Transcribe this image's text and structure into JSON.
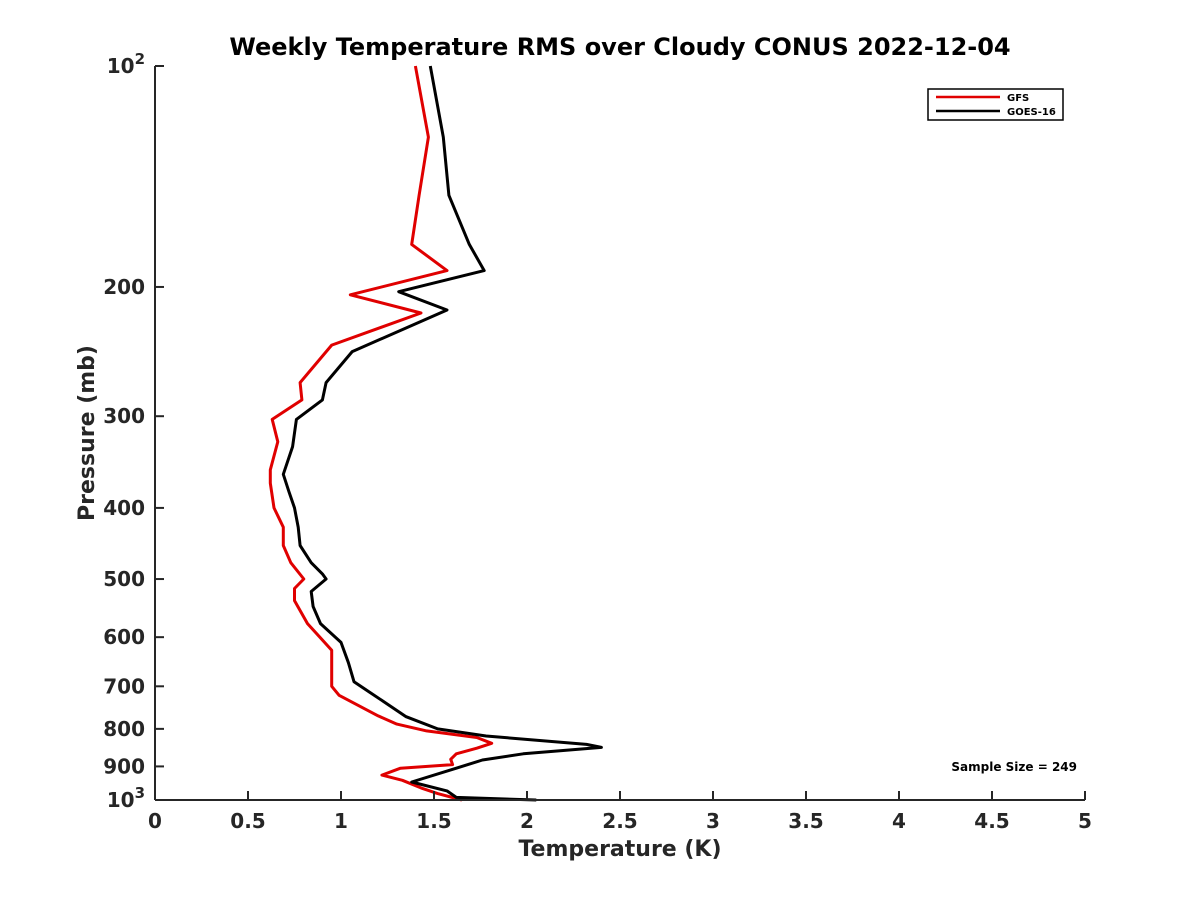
{
  "chart_data": {
    "type": "line",
    "title": "Weekly Temperature RMS over Cloudy CONUS 2022-12-04",
    "xlabel": "Temperature (K)",
    "ylabel": "Pressure (mb)",
    "xlim": [
      0,
      5
    ],
    "ylim": [
      100,
      1000
    ],
    "y_scale": "log",
    "y_reversed": true,
    "grid": false,
    "legend_position": "top-right",
    "x_ticks": [
      {
        "value": 0,
        "label": "0"
      },
      {
        "value": 0.5,
        "label": "0.5"
      },
      {
        "value": 1,
        "label": "1"
      },
      {
        "value": 1.5,
        "label": "1.5"
      },
      {
        "value": 2,
        "label": "2"
      },
      {
        "value": 2.5,
        "label": "2.5"
      },
      {
        "value": 3,
        "label": "3"
      },
      {
        "value": 3.5,
        "label": "3.5"
      },
      {
        "value": 4,
        "label": "4"
      },
      {
        "value": 4.5,
        "label": "4.5"
      },
      {
        "value": 5,
        "label": "5"
      }
    ],
    "y_ticks": [
      {
        "value": 100,
        "label": "10",
        "sup": "2"
      },
      {
        "value": 200,
        "label": "200"
      },
      {
        "value": 300,
        "label": "300"
      },
      {
        "value": 400,
        "label": "400"
      },
      {
        "value": 500,
        "label": "500"
      },
      {
        "value": 600,
        "label": "600"
      },
      {
        "value": 700,
        "label": "700"
      },
      {
        "value": 800,
        "label": "800"
      },
      {
        "value": 900,
        "label": "900"
      },
      {
        "value": 1000,
        "label": "10",
        "sup": "3"
      }
    ],
    "series": [
      {
        "name": "GFS",
        "color": "#e00000",
        "points": [
          [
            1.4,
            100
          ],
          [
            1.47,
            125
          ],
          [
            1.42,
            150
          ],
          [
            1.38,
            175
          ],
          [
            1.57,
            190
          ],
          [
            1.05,
            205
          ],
          [
            1.43,
            217
          ],
          [
            0.95,
            240
          ],
          [
            0.78,
            270
          ],
          [
            0.79,
            285
          ],
          [
            0.63,
            303
          ],
          [
            0.66,
            325
          ],
          [
            0.62,
            355
          ],
          [
            0.62,
            370
          ],
          [
            0.64,
            400
          ],
          [
            0.69,
            425
          ],
          [
            0.69,
            450
          ],
          [
            0.73,
            475
          ],
          [
            0.8,
            500
          ],
          [
            0.75,
            515
          ],
          [
            0.75,
            535
          ],
          [
            0.82,
            575
          ],
          [
            0.95,
            625
          ],
          [
            0.95,
            675
          ],
          [
            0.95,
            700
          ],
          [
            0.99,
            720
          ],
          [
            1.2,
            768
          ],
          [
            1.3,
            788
          ],
          [
            1.46,
            805
          ],
          [
            1.73,
            822
          ],
          [
            1.81,
            837
          ],
          [
            1.73,
            850
          ],
          [
            1.62,
            865
          ],
          [
            1.59,
            880
          ],
          [
            1.6,
            895
          ],
          [
            1.32,
            905
          ],
          [
            1.22,
            925
          ],
          [
            1.33,
            940
          ],
          [
            1.44,
            965
          ],
          [
            1.52,
            980
          ],
          [
            1.65,
            1000
          ]
        ]
      },
      {
        "name": "GOES-16",
        "color": "#000000",
        "points": [
          [
            1.48,
            100
          ],
          [
            1.55,
            125
          ],
          [
            1.58,
            150
          ],
          [
            1.69,
            175
          ],
          [
            1.77,
            190
          ],
          [
            1.31,
            203
          ],
          [
            1.57,
            215
          ],
          [
            1.06,
            245
          ],
          [
            0.92,
            270
          ],
          [
            0.9,
            285
          ],
          [
            0.76,
            303
          ],
          [
            0.74,
            330
          ],
          [
            0.69,
            360
          ],
          [
            0.72,
            380
          ],
          [
            0.75,
            400
          ],
          [
            0.77,
            425
          ],
          [
            0.78,
            450
          ],
          [
            0.84,
            475
          ],
          [
            0.9,
            492
          ],
          [
            0.92,
            500
          ],
          [
            0.84,
            520
          ],
          [
            0.85,
            545
          ],
          [
            0.89,
            575
          ],
          [
            1.0,
            610
          ],
          [
            1.04,
            650
          ],
          [
            1.07,
            690
          ],
          [
            1.15,
            712
          ],
          [
            1.35,
            770
          ],
          [
            1.52,
            800
          ],
          [
            1.78,
            818
          ],
          [
            2.32,
            840
          ],
          [
            2.4,
            848
          ],
          [
            1.98,
            865
          ],
          [
            1.76,
            882
          ],
          [
            1.62,
            905
          ],
          [
            1.38,
            945
          ],
          [
            1.57,
            972
          ],
          [
            1.62,
            992
          ],
          [
            2.05,
            1000
          ]
        ]
      }
    ],
    "annotation": "Sample Size = 249"
  }
}
